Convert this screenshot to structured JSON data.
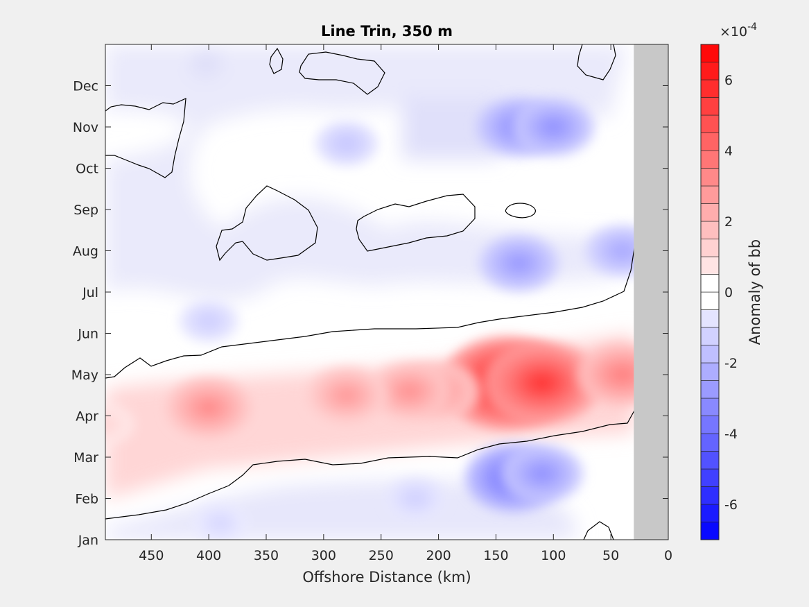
{
  "chart_data": {
    "type": "heatmap",
    "title": "Line Trin, 350 m",
    "xlabel": "Offshore Distance (km)",
    "ylabel": "",
    "colorbar_label": "Anomaly of bb",
    "colorbar_exponent": "×10",
    "colorbar_exponent_power": "-4",
    "x_range": [
      490,
      0
    ],
    "x_direction": "reversed",
    "x_ticks": [
      "450",
      "400",
      "350",
      "300",
      "250",
      "200",
      "150",
      "100",
      "50",
      "0"
    ],
    "y_range_months": [
      1,
      13
    ],
    "y_ticks": [
      "Jan",
      "Feb",
      "Mar",
      "Apr",
      "May",
      "Jun",
      "Jul",
      "Aug",
      "Sep",
      "Oct",
      "Nov",
      "Dec"
    ],
    "colorbar_range": [
      -7,
      7
    ],
    "colorbar_ticks": [
      "-6",
      "-4",
      "-2",
      "0",
      "2",
      "4",
      "6"
    ],
    "colormap": "blue-white-red",
    "land_color": "#c8c8c8",
    "land_x_range": [
      30,
      0
    ],
    "zero_contour_color": "#000000",
    "grid": false,
    "features": [
      {
        "kind": "positive",
        "x": 140,
        "month": 4.8,
        "value": 6.5
      },
      {
        "kind": "positive",
        "x": 110,
        "month": 4.8,
        "value": 5.5
      },
      {
        "kind": "positive",
        "x": 200,
        "month": 4.6,
        "value": 3.0
      },
      {
        "kind": "positive",
        "x": 225,
        "month": 4.6,
        "value": 3.0
      },
      {
        "kind": "positive",
        "x": 280,
        "month": 4.5,
        "value": 2.8
      },
      {
        "kind": "positive",
        "x": 400,
        "month": 4.2,
        "value": 3.2
      },
      {
        "kind": "positive",
        "x": 490,
        "month": 3.8,
        "value": 1.2
      },
      {
        "kind": "positive",
        "x": 40,
        "month": 5.0,
        "value": 3.5
      },
      {
        "kind": "negative",
        "x": 135,
        "month": 2.5,
        "value": -4.0
      },
      {
        "kind": "negative",
        "x": 110,
        "month": 2.6,
        "value": -3.0
      },
      {
        "kind": "negative",
        "x": 130,
        "month": 11.0,
        "value": -3.2
      },
      {
        "kind": "negative",
        "x": 100,
        "month": 11.0,
        "value": -3.0
      },
      {
        "kind": "negative",
        "x": 130,
        "month": 7.7,
        "value": -2.8
      },
      {
        "kind": "negative",
        "x": 40,
        "month": 8.0,
        "value": -2.4
      },
      {
        "kind": "negative",
        "x": 280,
        "month": 10.6,
        "value": -1.6
      },
      {
        "kind": "negative",
        "x": 400,
        "month": 6.3,
        "value": -1.4
      },
      {
        "kind": "negative",
        "x": 220,
        "month": 2.0,
        "value": -1.3
      },
      {
        "kind": "negative",
        "x": 390,
        "month": 1.4,
        "value": -1.1
      }
    ]
  }
}
